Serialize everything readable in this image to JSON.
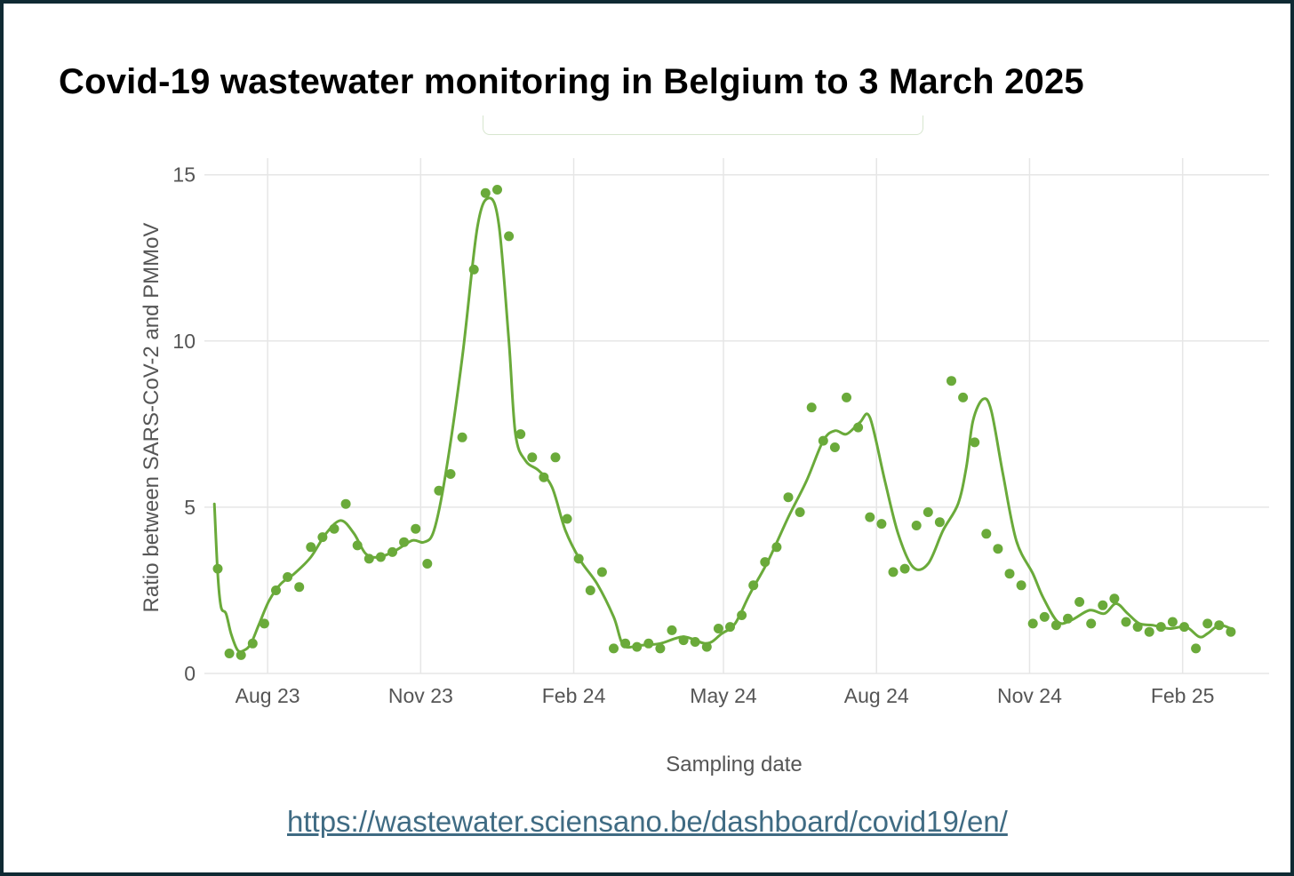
{
  "header": {
    "title": "Covid-19 wastewater monitoring in Belgium to 3 March 2025"
  },
  "source": {
    "url": "https://wastewater.sciensano.be/dashboard/covid19/en/"
  },
  "colors": {
    "series": "#6aaa3a",
    "grid": "#e6e6e6",
    "axis_text": "#555555",
    "link": "#3f6b83"
  },
  "chart_data": {
    "type": "scatter",
    "title": "Covid-19 wastewater monitoring in Belgium to 3 March 2025",
    "xlabel": "Sampling date",
    "ylabel": "Ratio between SARS-CoV-2 and PMMoV",
    "xlim": [
      "2023-06-24",
      "2025-03-25"
    ],
    "ylim": [
      0,
      15.5
    ],
    "x_ticks": [
      {
        "date": "2023-08-01",
        "label": "Aug 23"
      },
      {
        "date": "2023-11-01",
        "label": "Nov 23"
      },
      {
        "date": "2024-02-01",
        "label": "Feb 24"
      },
      {
        "date": "2024-05-01",
        "label": "May 24"
      },
      {
        "date": "2024-08-01",
        "label": "Aug 24"
      },
      {
        "date": "2024-11-01",
        "label": "Nov 24"
      },
      {
        "date": "2025-02-01",
        "label": "Feb 25"
      }
    ],
    "y_ticks": [
      0,
      5,
      10,
      15
    ],
    "grid": true,
    "legend": "none",
    "series": [
      {
        "type": "points",
        "x": [
          "2023-07-02",
          "2023-07-09",
          "2023-07-16",
          "2023-07-23",
          "2023-07-30",
          "2023-08-06",
          "2023-08-13",
          "2023-08-20",
          "2023-08-27",
          "2023-09-03",
          "2023-09-10",
          "2023-09-17",
          "2023-09-24",
          "2023-10-01",
          "2023-10-08",
          "2023-10-15",
          "2023-10-22",
          "2023-10-29",
          "2023-11-05",
          "2023-11-12",
          "2023-11-19",
          "2023-11-26",
          "2023-12-03",
          "2023-12-10",
          "2023-12-17",
          "2023-12-24",
          "2023-12-31",
          "2024-01-07",
          "2024-01-14",
          "2024-01-21",
          "2024-01-28",
          "2024-02-04",
          "2024-02-11",
          "2024-02-18",
          "2024-02-25",
          "2024-03-03",
          "2024-03-10",
          "2024-03-17",
          "2024-03-24",
          "2024-03-31",
          "2024-04-07",
          "2024-04-14",
          "2024-04-21",
          "2024-04-28",
          "2024-05-05",
          "2024-05-12",
          "2024-05-19",
          "2024-05-26",
          "2024-06-02",
          "2024-06-09",
          "2024-06-16",
          "2024-06-23",
          "2024-06-30",
          "2024-07-07",
          "2024-07-14",
          "2024-07-21",
          "2024-07-28",
          "2024-08-04",
          "2024-08-11",
          "2024-08-18",
          "2024-08-25",
          "2024-09-01",
          "2024-09-08",
          "2024-09-15",
          "2024-09-22",
          "2024-09-29",
          "2024-10-06",
          "2024-10-13",
          "2024-10-20",
          "2024-10-27",
          "2024-11-03",
          "2024-11-10",
          "2024-11-17",
          "2024-11-24",
          "2024-12-01",
          "2024-12-08",
          "2024-12-15",
          "2024-12-22",
          "2024-12-29",
          "2025-01-05",
          "2025-01-12",
          "2025-01-19",
          "2025-01-26",
          "2025-02-02",
          "2025-02-09",
          "2025-02-16",
          "2025-02-23",
          "2025-03-02"
        ],
        "y": [
          3.15,
          0.6,
          0.55,
          0.9,
          1.5,
          2.5,
          2.9,
          2.6,
          3.8,
          4.1,
          4.35,
          5.1,
          3.85,
          3.45,
          3.5,
          3.65,
          3.95,
          4.35,
          3.3,
          5.5,
          6.0,
          7.1,
          12.15,
          14.45,
          14.55,
          13.15,
          7.2,
          6.5,
          5.9,
          6.5,
          4.65,
          3.45,
          2.5,
          3.05,
          0.75,
          0.9,
          0.8,
          0.9,
          0.75,
          1.3,
          1.0,
          0.95,
          0.8,
          1.35,
          1.4,
          1.75,
          2.65,
          3.35,
          3.8,
          5.3,
          4.85,
          8.0,
          7.0,
          6.8,
          8.3,
          7.4,
          4.7,
          4.5,
          3.05,
          3.15,
          4.45,
          4.85,
          4.55,
          8.8,
          8.3,
          6.95,
          4.2,
          3.75,
          3.0,
          2.65,
          1.5,
          1.7,
          1.45,
          1.65,
          2.15,
          1.5,
          2.05,
          2.25,
          1.55,
          1.4,
          1.25,
          1.4,
          1.55,
          1.4,
          0.75,
          1.5,
          1.45,
          1.25
        ]
      },
      {
        "type": "line",
        "x": [
          "2023-06-30",
          "2023-07-02",
          "2023-07-04",
          "2023-07-07",
          "2023-07-10",
          "2023-07-14",
          "2023-07-18",
          "2023-07-22",
          "2023-07-27",
          "2023-08-02",
          "2023-08-09",
          "2023-08-17",
          "2023-08-27",
          "2023-09-05",
          "2023-09-14",
          "2023-09-22",
          "2023-09-29",
          "2023-10-07",
          "2023-10-17",
          "2023-10-27",
          "2023-11-03",
          "2023-11-09",
          "2023-11-16",
          "2023-11-26",
          "2023-12-05",
          "2023-12-12",
          "2023-12-18",
          "2023-12-24",
          "2023-12-28",
          "2024-01-03",
          "2024-01-11",
          "2024-01-19",
          "2024-01-27",
          "2024-02-05",
          "2024-02-15",
          "2024-02-25",
          "2024-03-02",
          "2024-03-12",
          "2024-03-24",
          "2024-04-07",
          "2024-04-21",
          "2024-04-30",
          "2024-05-08",
          "2024-05-17",
          "2024-05-28",
          "2024-06-09",
          "2024-06-20",
          "2024-06-30",
          "2024-07-07",
          "2024-07-14",
          "2024-07-22",
          "2024-07-28",
          "2024-08-06",
          "2024-08-14",
          "2024-08-23",
          "2024-09-01",
          "2024-09-10",
          "2024-09-19",
          "2024-09-24",
          "2024-09-28",
          "2024-10-04",
          "2024-10-09",
          "2024-10-16",
          "2024-10-24",
          "2024-11-03",
          "2024-11-09",
          "2024-11-18",
          "2024-11-26",
          "2024-12-07",
          "2024-12-16",
          "2024-12-23",
          "2024-12-30",
          "2025-01-06",
          "2025-01-14",
          "2025-01-24",
          "2025-02-03",
          "2025-02-11",
          "2025-02-16",
          "2025-02-23",
          "2025-03-02"
        ],
        "y": [
          5.1,
          3.0,
          2.0,
          1.8,
          1.2,
          0.7,
          0.7,
          0.9,
          1.5,
          2.2,
          2.7,
          3.0,
          3.5,
          4.2,
          4.6,
          4.2,
          3.6,
          3.5,
          3.7,
          4.0,
          3.95,
          4.3,
          6.0,
          9.5,
          13.4,
          14.3,
          13.5,
          10.0,
          7.2,
          6.4,
          6.1,
          5.6,
          4.3,
          3.4,
          2.7,
          1.7,
          0.85,
          0.85,
          0.9,
          1.1,
          0.9,
          1.2,
          1.5,
          2.4,
          3.4,
          4.7,
          5.8,
          7.0,
          7.3,
          7.2,
          7.55,
          7.7,
          5.8,
          4.2,
          3.2,
          3.3,
          4.3,
          5.1,
          6.2,
          7.6,
          8.25,
          7.9,
          6.0,
          4.0,
          3.0,
          2.3,
          1.55,
          1.6,
          1.9,
          1.8,
          2.1,
          1.8,
          1.5,
          1.45,
          1.35,
          1.4,
          1.1,
          1.2,
          1.45,
          1.35
        ]
      }
    ]
  }
}
